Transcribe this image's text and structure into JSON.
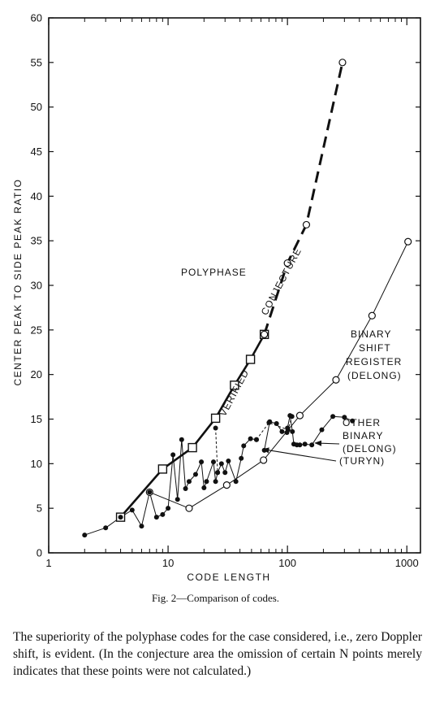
{
  "chart_data": {
    "type": "line",
    "xlabel": "CODE LENGTH",
    "ylabel": "CENTER PEAK TO SIDE PEAK RATIO",
    "xscale": "log",
    "xlim": [
      1,
      1300
    ],
    "ylim": [
      0,
      60
    ],
    "x_ticks": [
      1,
      10,
      100,
      1000
    ],
    "y_ticks": [
      0,
      5,
      10,
      15,
      20,
      25,
      30,
      35,
      40,
      45,
      50,
      55,
      60
    ],
    "annotations": [
      {
        "text": "POLYPHASE"
      },
      {
        "text": "VERIFIED"
      },
      {
        "text": "CONJECTURE"
      },
      {
        "text": "BINARY"
      },
      {
        "text": "SHIFT"
      },
      {
        "text": "REGISTER"
      },
      {
        "text": "(DELONG)"
      },
      {
        "text": "OTHER"
      },
      {
        "text": "BINARY"
      },
      {
        "text": "(DELONG)"
      },
      {
        "text": "(TURYN)"
      }
    ],
    "series": [
      {
        "marker": "square",
        "style": "solid-thick",
        "points": [
          [
            4,
            4
          ],
          [
            9,
            9.4
          ],
          [
            16,
            11.8
          ],
          [
            25,
            15.1
          ],
          [
            36,
            18.8
          ],
          [
            49,
            21.7
          ],
          [
            64,
            24.5
          ]
        ]
      },
      {
        "marker": "open-circle",
        "style": "dashed-thick",
        "points": [
          [
            64,
            24.5
          ],
          [
            100,
            32.5
          ],
          [
            144,
            36.8
          ],
          [
            289,
            55
          ]
        ]
      },
      {
        "marker": "open-circle",
        "style": "solid-thin",
        "points": [
          [
            7,
            6.8
          ],
          [
            15,
            5
          ],
          [
            31,
            7.6
          ],
          [
            63,
            10.4
          ],
          [
            127,
            15.4
          ],
          [
            255,
            19.4
          ],
          [
            511,
            26.6
          ],
          [
            1023,
            34.9
          ]
        ]
      },
      {
        "marker": "filled-circle",
        "style": "solid-thin",
        "points": [
          [
            2,
            2
          ],
          [
            3,
            2.8
          ],
          [
            4,
            4
          ],
          [
            5,
            4.8
          ],
          [
            6,
            3
          ],
          [
            7,
            6.8
          ],
          [
            8,
            4
          ],
          [
            9,
            4.3
          ],
          [
            10,
            5
          ],
          [
            11,
            11
          ],
          [
            12,
            6
          ],
          [
            13,
            12.7
          ],
          [
            14,
            7.2
          ],
          [
            15,
            8
          ],
          [
            17,
            8.8
          ],
          [
            19,
            10.2
          ],
          [
            20,
            7.3
          ],
          [
            21,
            8
          ],
          [
            24,
            10.2
          ],
          [
            25,
            8
          ],
          [
            26,
            9
          ],
          [
            28,
            10
          ],
          [
            30,
            9
          ],
          [
            32,
            10.3
          ],
          [
            37,
            8
          ],
          [
            41,
            10.6
          ],
          [
            43,
            12
          ],
          [
            49,
            12.8
          ],
          [
            55,
            12.7
          ]
        ]
      },
      {
        "marker": "filled-circle",
        "style": "solid-thin",
        "points": [
          [
            64,
            11.5
          ],
          [
            71,
            14.7
          ],
          [
            81,
            14.5
          ],
          [
            90,
            13.6
          ],
          [
            99,
            13.5
          ],
          [
            100,
            14
          ],
          [
            105,
            15.4
          ],
          [
            110,
            13.6
          ],
          [
            113,
            12.2
          ],
          [
            120,
            12.1
          ],
          [
            127,
            12.1
          ],
          [
            140,
            12.2
          ],
          [
            160,
            12.1
          ],
          [
            194,
            13.8
          ],
          [
            240,
            15.3
          ],
          [
            300,
            15.2
          ],
          [
            350,
            14.8
          ]
        ]
      },
      {
        "marker": "filled-circle",
        "style": "dashed-thin",
        "points": [
          [
            55,
            12.7
          ],
          [
            70,
            14.6
          ],
          [
            101,
            13.8
          ],
          [
            109,
            15.3
          ]
        ]
      },
      {
        "marker": "filled-circle",
        "style": "dashed-thin",
        "points": [
          [
            25,
            14
          ],
          [
            26,
            9
          ]
        ]
      }
    ]
  },
  "figure": {
    "caption": "Fig. 2—Comparison of codes."
  },
  "body": {
    "paragraph": "The superiority of the polyphase codes for the case considered, i.e., zero Doppler shift, is evident. (In the conjecture area the omission of certain N points merely indicates that these points were not calculated.)"
  }
}
